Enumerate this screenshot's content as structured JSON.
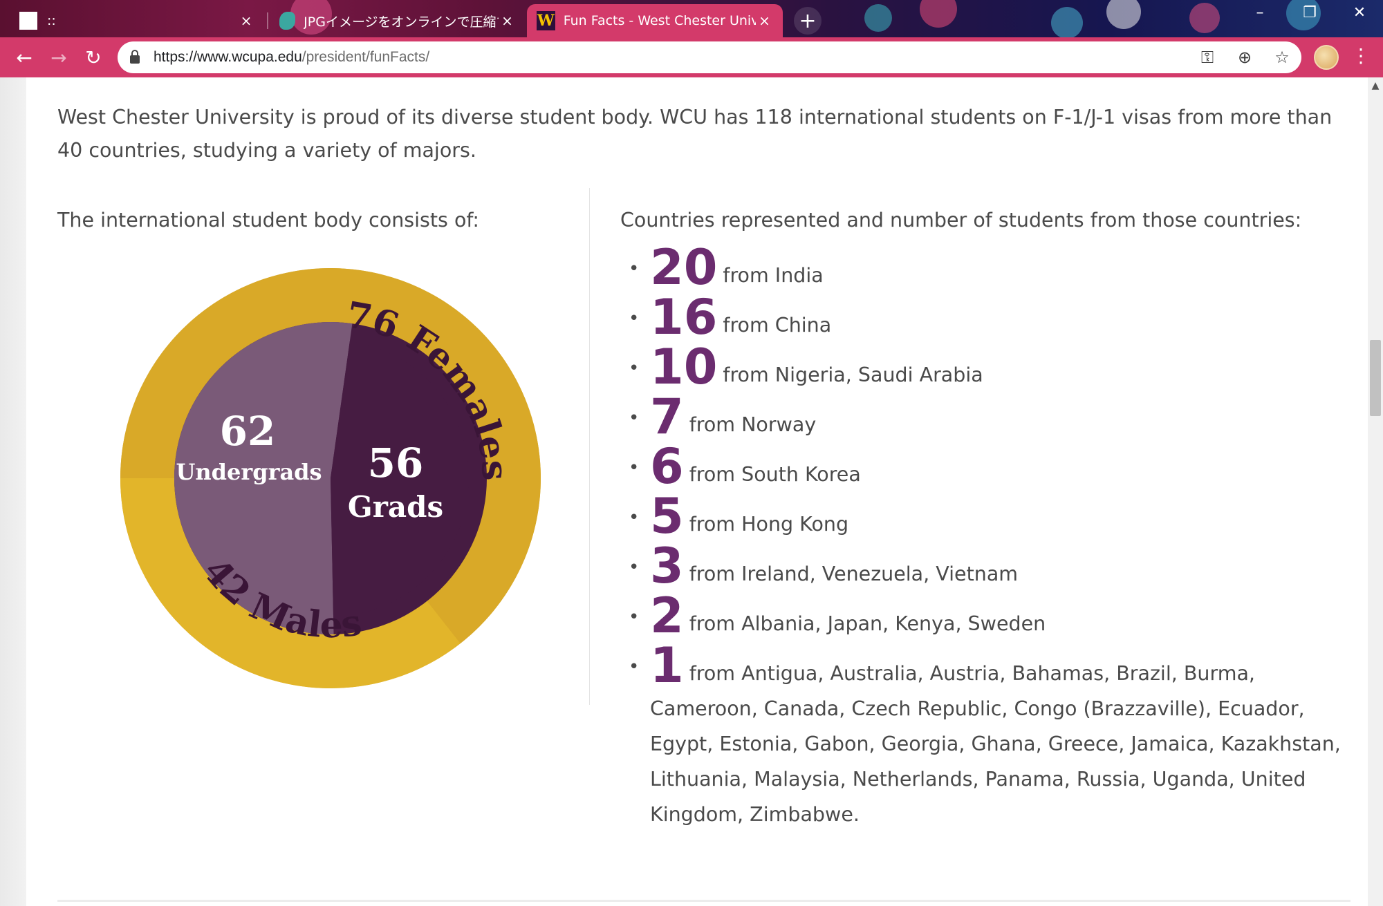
{
  "browser": {
    "tabs": [
      {
        "title": "::",
        "active": false
      },
      {
        "title": "JPGイメージをオンラインで圧縮する",
        "active": false
      },
      {
        "title": "Fun Facts - West Chester Univers",
        "active": true
      }
    ],
    "close_glyph": "×",
    "new_tab_glyph": "+",
    "url_host": "https://www.wcupa.edu",
    "url_path": "/president/funFacts/"
  },
  "page": {
    "intro": "West Chester University is proud of its diverse student body. WCU has 118 international students on F-1/J-1 visas from more than 40 countries, studying a variety of majors.",
    "left_heading": "The international student body consists of:",
    "right_heading": "Countries represented and number of students from those countries:",
    "infographic": {
      "outer_ring": [
        {
          "label": "76 Females",
          "value": 76,
          "color": "#d9a928"
        },
        {
          "label": "42 Males",
          "value": 42,
          "color": "#e2b52a"
        }
      ],
      "inner_pie": [
        {
          "number": "62",
          "label": "Undergrads",
          "value": 62,
          "color": "#7a5a78"
        },
        {
          "number": "56",
          "label": "Grads",
          "value": 56,
          "color": "#461c42"
        }
      ],
      "outer_text_color": "#3a1537"
    },
    "countries": [
      {
        "count": "20",
        "text": "from India"
      },
      {
        "count": "16",
        "text": "from China"
      },
      {
        "count": "10",
        "text": "from Nigeria, Saudi Arabia"
      },
      {
        "count": "7",
        "text": "from Norway"
      },
      {
        "count": "6",
        "text": "from South Korea"
      },
      {
        "count": "5",
        "text": "from Hong Kong"
      },
      {
        "count": "3",
        "text": "from Ireland, Venezuela, Vietnam"
      },
      {
        "count": "2",
        "text": "from Albania, Japan, Kenya, Sweden"
      },
      {
        "count": "1",
        "text": "from Antigua, Australia, Austria, Bahamas, Brazil, Burma, Cameroon, Canada, Czech Republic, Congo (Brazzaville), Ecuador, Egypt, Estonia, Gabon, Georgia, Ghana, Greece, Jamaica, Kazakhstan, Lithuania, Malaysia, Netherlands, Panama, Russia, Uganda, United Kingdom, Zimbabwe."
      }
    ],
    "accent_color": "#6b2c6f"
  }
}
